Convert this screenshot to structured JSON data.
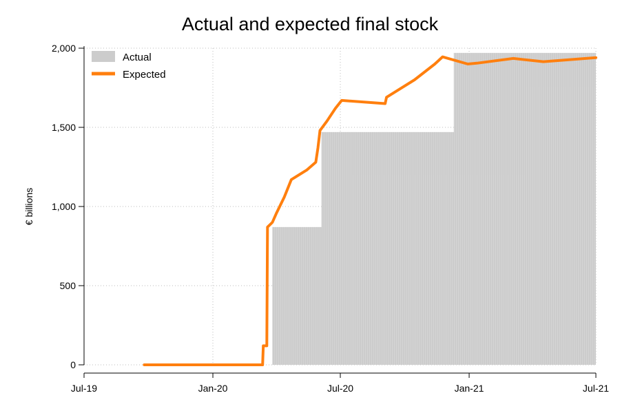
{
  "chart_data": {
    "type": "area",
    "title": "Actual and expected final stock",
    "xlabel": "",
    "ylabel": "€ billions",
    "xlim": [
      "2019-07-01",
      "2021-07-01"
    ],
    "ylim": [
      0,
      2000
    ],
    "x_ticks": [
      {
        "date": "2019-07-01",
        "label": "Jul-19"
      },
      {
        "date": "2020-01-01",
        "label": "Jan-20"
      },
      {
        "date": "2020-07-01",
        "label": "Jul-20"
      },
      {
        "date": "2021-01-01",
        "label": "Jan-21"
      },
      {
        "date": "2021-07-01",
        "label": "Jul-21"
      }
    ],
    "y_ticks": [
      {
        "value": 0,
        "label": "0"
      },
      {
        "value": 500,
        "label": "500"
      },
      {
        "value": 1000,
        "label": "1,000"
      },
      {
        "value": 1500,
        "label": "1,500"
      },
      {
        "value": 2000,
        "label": "2,000"
      }
    ],
    "grid": true,
    "legend_position": "top-left",
    "series": [
      {
        "name": "Actual",
        "type": "area",
        "color": "#cccccc",
        "points": [
          {
            "x": "2020-03-26",
            "y": 0
          },
          {
            "x": "2020-03-26",
            "y": 870
          },
          {
            "x": "2020-06-04",
            "y": 870
          },
          {
            "x": "2020-06-04",
            "y": 1470
          },
          {
            "x": "2020-12-10",
            "y": 1470
          },
          {
            "x": "2020-12-10",
            "y": 1970
          },
          {
            "x": "2021-07-01",
            "y": 1970
          },
          {
            "x": "2021-07-01",
            "y": 0
          }
        ]
      },
      {
        "name": "Expected",
        "type": "line",
        "color": "#ff7f0e",
        "points": [
          {
            "x": "2019-09-25",
            "y": 0
          },
          {
            "x": "2020-03-12",
            "y": 0
          },
          {
            "x": "2020-03-13",
            "y": 120
          },
          {
            "x": "2020-03-18",
            "y": 120
          },
          {
            "x": "2020-03-19",
            "y": 870
          },
          {
            "x": "2020-03-26",
            "y": 900
          },
          {
            "x": "2020-04-01",
            "y": 960
          },
          {
            "x": "2020-04-12",
            "y": 1060
          },
          {
            "x": "2020-04-22",
            "y": 1170
          },
          {
            "x": "2020-05-14",
            "y": 1230
          },
          {
            "x": "2020-05-27",
            "y": 1280
          },
          {
            "x": "2020-05-30",
            "y": 1370
          },
          {
            "x": "2020-06-02",
            "y": 1480
          },
          {
            "x": "2020-06-12",
            "y": 1540
          },
          {
            "x": "2020-06-24",
            "y": 1620
          },
          {
            "x": "2020-07-03",
            "y": 1670
          },
          {
            "x": "2020-09-03",
            "y": 1650
          },
          {
            "x": "2020-09-05",
            "y": 1690
          },
          {
            "x": "2020-10-15",
            "y": 1800
          },
          {
            "x": "2020-11-13",
            "y": 1900
          },
          {
            "x": "2020-11-24",
            "y": 1945
          },
          {
            "x": "2020-12-30",
            "y": 1900
          },
          {
            "x": "2021-01-12",
            "y": 1905
          },
          {
            "x": "2021-03-05",
            "y": 1935
          },
          {
            "x": "2021-04-17",
            "y": 1915
          },
          {
            "x": "2021-07-01",
            "y": 1940
          }
        ]
      }
    ]
  }
}
